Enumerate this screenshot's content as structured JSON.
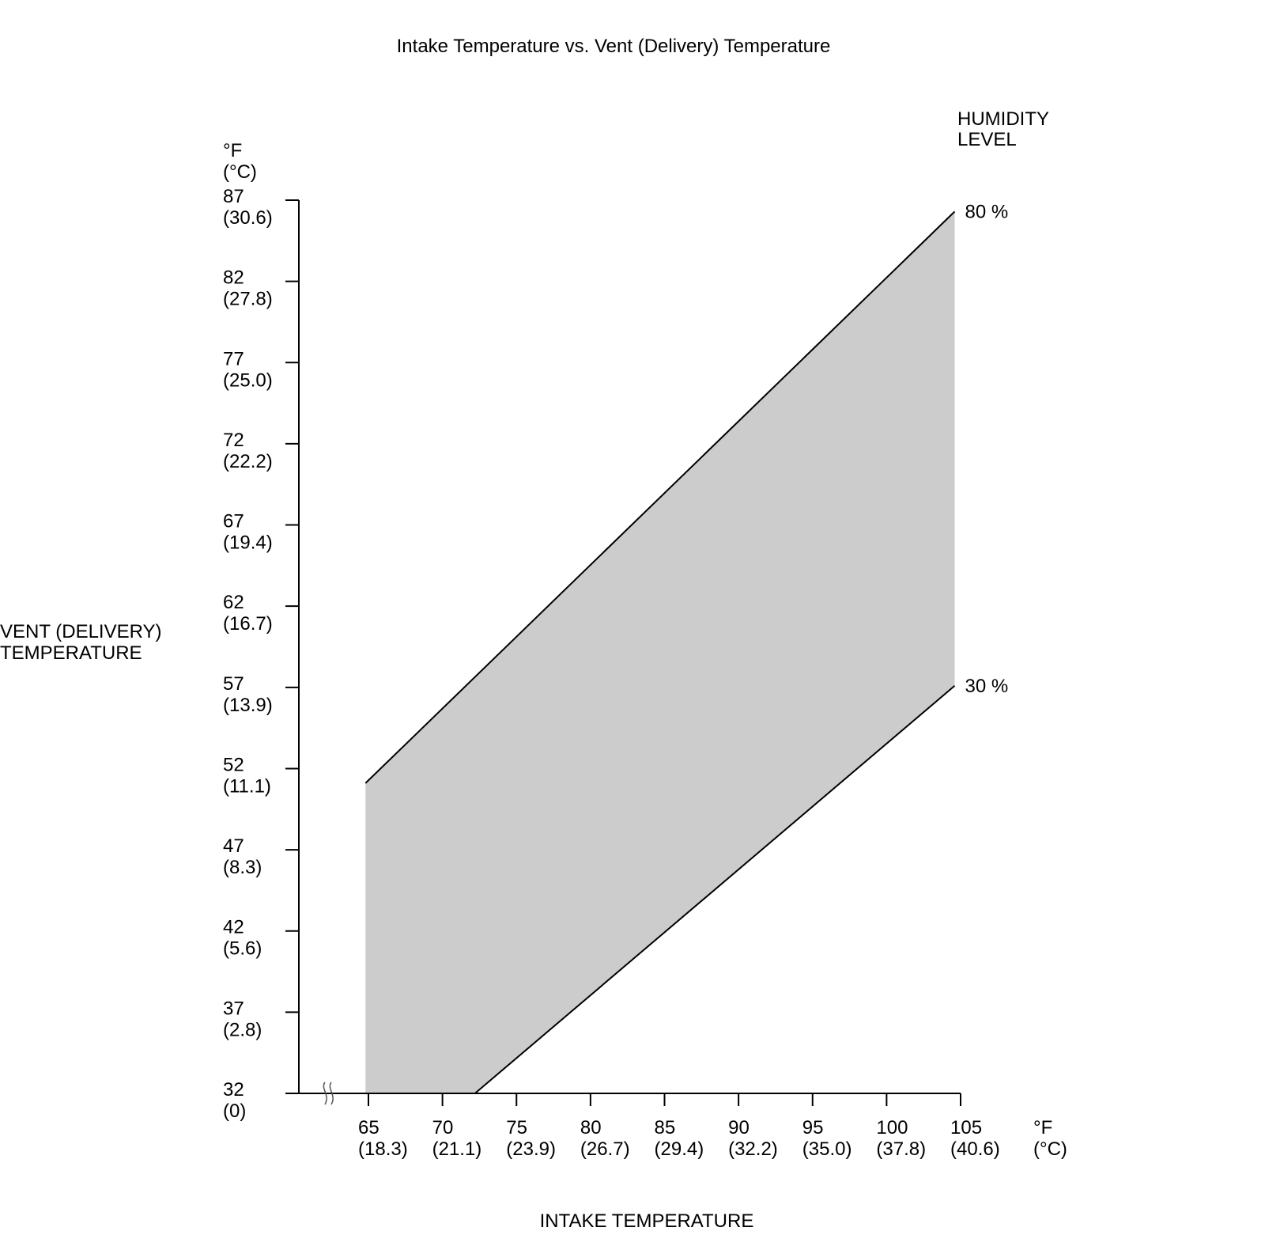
{
  "chart_data": {
    "type": "area",
    "title": "Intake Temperature vs. Vent (Delivery) Temperature",
    "xlabel": "INTAKE TEMPERATURE",
    "ylabel_lines": [
      "VENT (DELIVERY)",
      "TEMPERATURE"
    ],
    "x_unit_lines": [
      "°F",
      "(°C)"
    ],
    "y_unit_lines": [
      "°F",
      "(°C)"
    ],
    "xlim": [
      60.5,
      105
    ],
    "ylim": [
      32,
      87
    ],
    "x_axis_break": true,
    "grid": false,
    "legend_title_lines": [
      "HUMIDITY",
      "LEVEL"
    ],
    "x_ticks": [
      {
        "value": 65,
        "f": "65",
        "c": "(18.3)"
      },
      {
        "value": 70,
        "f": "70",
        "c": "(21.1)"
      },
      {
        "value": 75,
        "f": "75",
        "c": "(23.9)"
      },
      {
        "value": 80,
        "f": "80",
        "c": "(26.7)"
      },
      {
        "value": 85,
        "f": "85",
        "c": "(29.4)"
      },
      {
        "value": 90,
        "f": "90",
        "c": "(32.2)"
      },
      {
        "value": 95,
        "f": "95",
        "c": "(35.0)"
      },
      {
        "value": 100,
        "f": "100",
        "c": "(37.8)"
      },
      {
        "value": 105,
        "f": "105",
        "c": "(40.6)"
      }
    ],
    "y_ticks": [
      {
        "value": 87,
        "f": "87",
        "c": "(30.6)"
      },
      {
        "value": 82,
        "f": "82",
        "c": "(27.8)"
      },
      {
        "value": 77,
        "f": "77",
        "c": "(25.0)"
      },
      {
        "value": 72,
        "f": "72",
        "c": "(22.2)"
      },
      {
        "value": 67,
        "f": "67",
        "c": "(19.4)"
      },
      {
        "value": 62,
        "f": "62",
        "c": "(16.7)"
      },
      {
        "value": 57,
        "f": "57",
        "c": "(13.9)"
      },
      {
        "value": 52,
        "f": "52",
        "c": "(11.1)"
      },
      {
        "value": 47,
        "f": "47",
        "c": "(8.3)"
      },
      {
        "value": 42,
        "f": "42",
        "c": "(5.6)"
      },
      {
        "value": 37,
        "f": "37",
        "c": "(2.8)"
      },
      {
        "value": 32,
        "f": "32",
        "c": "(0)"
      }
    ],
    "series": [
      {
        "name": "80 %",
        "x": [
          64.8,
          104.6
        ],
        "y": [
          51.1,
          86.3
        ]
      },
      {
        "name": "30 %",
        "x": [
          72.2,
          104.6
        ],
        "y": [
          32,
          57.1
        ]
      }
    ],
    "band": {
      "x": [
        64.8,
        104.6,
        104.6,
        72.2,
        64.8
      ],
      "y": [
        51.1,
        86.3,
        57.1,
        32,
        32
      ]
    },
    "colors": {
      "band": "#cccccc",
      "line": "#000000"
    }
  }
}
